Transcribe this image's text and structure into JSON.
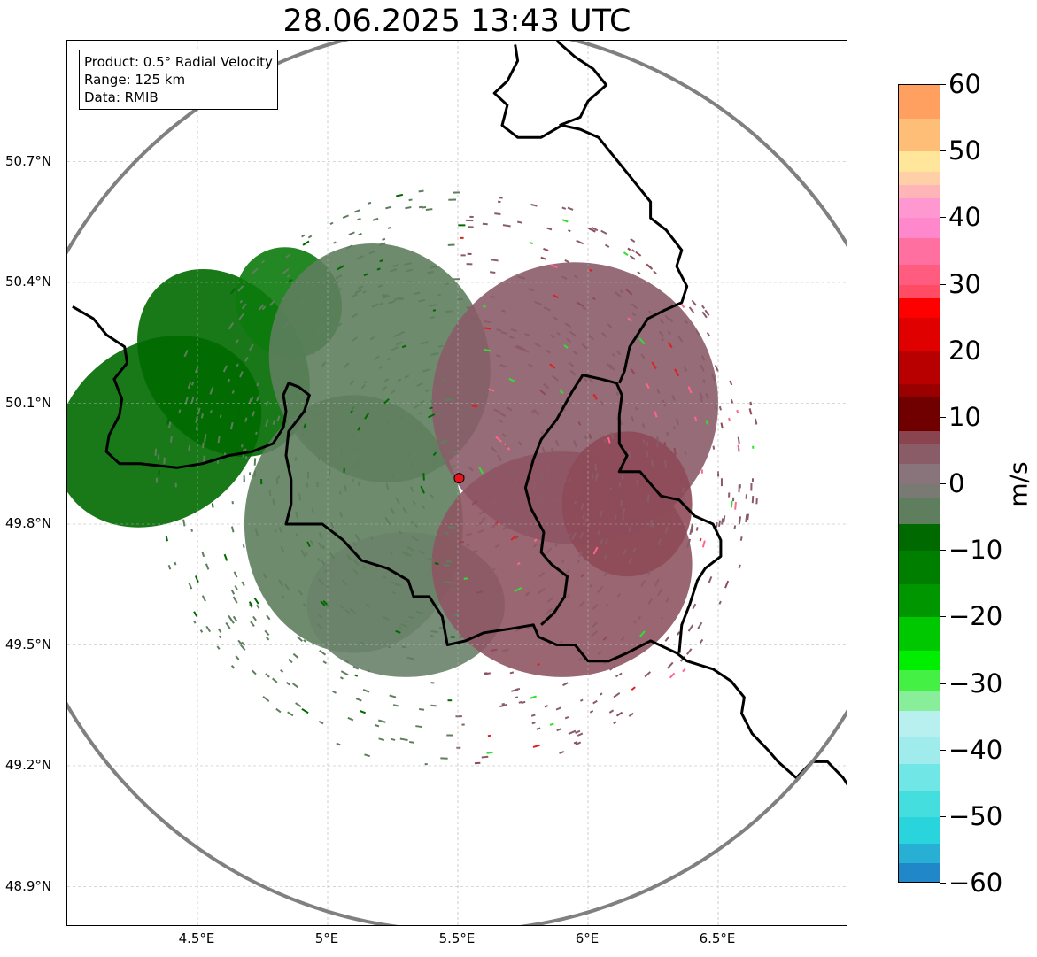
{
  "title": "28.06.2025 13:43 UTC",
  "info": {
    "product": "Product: 0.5° Radial Velocity",
    "range": "Range: 125 km",
    "data": "Data: RMIB"
  },
  "map": {
    "lon_range": [
      4.0,
      7.0
    ],
    "lat_range": [
      48.8,
      51.0
    ],
    "radar_site": {
      "lon": 5.505,
      "lat": 49.914
    },
    "range_ring_km": 125,
    "lat_ticks": [
      {
        "value": 50.7,
        "label": "50.7°N"
      },
      {
        "value": 50.4,
        "label": "50.4°N"
      },
      {
        "value": 50.1,
        "label": "50.1°N"
      },
      {
        "value": 49.8,
        "label": "49.8°N"
      },
      {
        "value": 49.5,
        "label": "49.5°N"
      },
      {
        "value": 49.2,
        "label": "49.2°N"
      },
      {
        "value": 48.9,
        "label": "48.9°N"
      }
    ],
    "lon_ticks": [
      {
        "value": 4.5,
        "label": "4.5°E"
      },
      {
        "value": 5.0,
        "label": "5°E"
      },
      {
        "value": 5.5,
        "label": "5.5°E"
      },
      {
        "value": 6.0,
        "label": "6°E"
      },
      {
        "value": 6.5,
        "label": "6.5°E"
      }
    ],
    "grid": true,
    "colors": {
      "border": "#000000",
      "range_ring": "#808080",
      "gridline": "#b0b0b0",
      "radar_marker": "#e8141b",
      "inbound_strong": "#006a00",
      "inbound_weak": "#5e7e5e",
      "outbound_weak": "#8a5c68",
      "outbound_mid": "#8e4a58"
    },
    "borders": [
      [
        [
          4.02,
          50.34
        ],
        [
          4.1,
          50.31
        ],
        [
          4.15,
          50.27
        ],
        [
          4.22,
          50.24
        ],
        [
          4.23,
          50.2
        ],
        [
          4.18,
          50.16
        ],
        [
          4.21,
          50.11
        ],
        [
          4.2,
          50.07
        ],
        [
          4.16,
          50.02
        ],
        [
          4.15,
          49.98
        ],
        [
          4.2,
          49.95
        ],
        [
          4.28,
          49.95
        ],
        [
          4.42,
          49.94
        ],
        [
          4.52,
          49.95
        ],
        [
          4.62,
          49.97
        ],
        [
          4.71,
          49.98
        ],
        [
          4.79,
          50.0
        ],
        [
          4.83,
          50.04
        ],
        [
          4.84,
          50.08
        ],
        [
          4.83,
          50.12
        ],
        [
          4.85,
          50.15
        ],
        [
          4.89,
          50.14
        ],
        [
          4.93,
          50.12
        ],
        [
          4.91,
          50.08
        ],
        [
          4.85,
          50.03
        ],
        [
          4.84,
          49.97
        ],
        [
          4.86,
          49.91
        ],
        [
          4.86,
          49.85
        ],
        [
          4.84,
          49.8
        ],
        [
          4.88,
          49.8
        ],
        [
          4.98,
          49.8
        ],
        [
          5.06,
          49.76
        ],
        [
          5.13,
          49.71
        ],
        [
          5.23,
          49.69
        ],
        [
          5.31,
          49.66
        ],
        [
          5.33,
          49.62
        ],
        [
          5.39,
          49.62
        ],
        [
          5.44,
          49.57
        ],
        [
          5.46,
          49.5
        ],
        [
          5.53,
          49.51
        ],
        [
          5.6,
          49.53
        ],
        [
          5.7,
          49.54
        ],
        [
          5.79,
          49.55
        ],
        [
          5.81,
          49.52
        ],
        [
          5.88,
          49.5
        ],
        [
          5.95,
          49.5
        ],
        [
          6.0,
          49.46
        ],
        [
          6.08,
          49.46
        ],
        [
          6.15,
          49.48
        ],
        [
          6.24,
          49.51
        ],
        [
          6.34,
          49.48
        ],
        [
          6.38,
          49.46
        ],
        [
          6.48,
          49.44
        ],
        [
          6.55,
          49.41
        ],
        [
          6.6,
          49.37
        ],
        [
          6.59,
          49.33
        ],
        [
          6.63,
          49.28
        ],
        [
          6.69,
          49.24
        ],
        [
          6.73,
          49.21
        ],
        [
          6.8,
          49.17
        ],
        [
          6.86,
          49.21
        ],
        [
          6.92,
          49.21
        ],
        [
          6.98,
          49.17
        ],
        [
          7.0,
          49.15
        ]
      ],
      [
        [
          5.82,
          49.55
        ],
        [
          5.87,
          49.58
        ],
        [
          5.91,
          49.62
        ],
        [
          5.92,
          49.67
        ],
        [
          5.86,
          49.7
        ],
        [
          5.82,
          49.73
        ],
        [
          5.83,
          49.78
        ],
        [
          5.78,
          49.84
        ],
        [
          5.76,
          49.89
        ],
        [
          5.79,
          49.96
        ],
        [
          5.82,
          50.01
        ],
        [
          5.88,
          50.06
        ],
        [
          5.94,
          50.13
        ],
        [
          5.98,
          50.17
        ],
        [
          6.05,
          50.16
        ],
        [
          6.11,
          50.15
        ],
        [
          6.13,
          50.12
        ],
        [
          6.12,
          50.07
        ],
        [
          6.12,
          50.0
        ],
        [
          6.15,
          49.97
        ],
        [
          6.12,
          49.93
        ],
        [
          6.2,
          49.93
        ],
        [
          6.28,
          49.87
        ],
        [
          6.35,
          49.86
        ],
        [
          6.41,
          49.82
        ],
        [
          6.48,
          49.8
        ],
        [
          6.51,
          49.76
        ],
        [
          6.51,
          49.72
        ],
        [
          6.45,
          49.69
        ],
        [
          6.42,
          49.66
        ],
        [
          6.39,
          49.6
        ],
        [
          6.36,
          49.55
        ],
        [
          6.35,
          49.48
        ]
      ],
      [
        [
          6.12,
          50.15
        ],
        [
          6.14,
          50.18
        ],
        [
          6.16,
          50.24
        ],
        [
          6.23,
          50.31
        ],
        [
          6.29,
          50.33
        ],
        [
          6.36,
          50.35
        ],
        [
          6.38,
          50.39
        ],
        [
          6.34,
          50.44
        ],
        [
          6.36,
          50.48
        ],
        [
          6.3,
          50.53
        ],
        [
          6.24,
          50.56
        ],
        [
          6.24,
          50.6
        ],
        [
          6.19,
          50.64
        ],
        [
          6.14,
          50.68
        ],
        [
          6.09,
          50.72
        ],
        [
          6.04,
          50.76
        ],
        [
          5.97,
          50.78
        ],
        [
          5.9,
          50.79
        ],
        [
          5.82,
          50.76
        ],
        [
          5.73,
          50.76
        ],
        [
          5.67,
          50.79
        ],
        [
          5.69,
          50.84
        ],
        [
          5.64,
          50.87
        ],
        [
          5.69,
          50.9
        ],
        [
          5.73,
          50.95
        ],
        [
          5.72,
          50.99
        ]
      ],
      [
        [
          5.88,
          51.0
        ],
        [
          5.95,
          50.96
        ],
        [
          6.02,
          50.93
        ],
        [
          6.07,
          50.89
        ],
        [
          6.0,
          50.85
        ],
        [
          5.97,
          50.81
        ],
        [
          5.89,
          50.79
        ]
      ]
    ],
    "echo_blobs": [
      {
        "lon": 4.35,
        "lat": 50.03,
        "rlon": 0.42,
        "rlat": 0.22,
        "rot": -35,
        "color": "#006a00"
      },
      {
        "lon": 4.6,
        "lat": 50.2,
        "rlon": 0.3,
        "rlat": 0.25,
        "rot": -35,
        "color": "#006a00"
      },
      {
        "lon": 4.85,
        "lat": 50.35,
        "rlon": 0.2,
        "rlat": 0.14,
        "rot": -30,
        "color": "#0b7a0b"
      },
      {
        "lon": 5.2,
        "lat": 50.2,
        "rlon": 0.42,
        "rlat": 0.3,
        "rot": -20,
        "color": "#5e7e5e"
      },
      {
        "lon": 5.1,
        "lat": 49.8,
        "rlon": 0.42,
        "rlat": 0.32,
        "rot": 0,
        "color": "#5e7e5e"
      },
      {
        "lon": 5.3,
        "lat": 49.6,
        "rlon": 0.38,
        "rlat": 0.18,
        "rot": 0,
        "color": "#6a826a"
      },
      {
        "lon": 5.95,
        "lat": 50.1,
        "rlon": 0.55,
        "rlat": 0.35,
        "rot": 0,
        "color": "#8a5c68"
      },
      {
        "lon": 5.9,
        "lat": 49.7,
        "rlon": 0.5,
        "rlat": 0.28,
        "rot": 0,
        "color": "#8e5563"
      },
      {
        "lon": 6.15,
        "lat": 49.85,
        "rlon": 0.25,
        "rlat": 0.18,
        "rot": 0,
        "color": "#8e4a58"
      }
    ],
    "noise_palette": [
      "#5e7e5e",
      "#8a5c68",
      "#006a00",
      "#e02020",
      "#33dd33",
      "#8e4a58",
      "#ff6688"
    ]
  },
  "colorbar": {
    "label": "m/s",
    "vmin": -60,
    "vmax": 60,
    "ticks": [
      "60",
      "50",
      "40",
      "30",
      "20",
      "10",
      "0",
      "−10",
      "−20",
      "−30",
      "−40",
      "−50",
      "−60"
    ],
    "tick_values": [
      60,
      50,
      40,
      30,
      20,
      10,
      0,
      -10,
      -20,
      -30,
      -40,
      -50,
      -60
    ],
    "stops": [
      {
        "from": 55,
        "to": 60,
        "color": "#ffa060"
      },
      {
        "from": 50,
        "to": 55,
        "color": "#ffbe78"
      },
      {
        "from": 47,
        "to": 50,
        "color": "#ffe69a"
      },
      {
        "from": 45,
        "to": 47,
        "color": "#ffd0a8"
      },
      {
        "from": 43,
        "to": 45,
        "color": "#ffb4b8"
      },
      {
        "from": 40,
        "to": 43,
        "color": "#ff98d0"
      },
      {
        "from": 37,
        "to": 40,
        "color": "#ff88cc"
      },
      {
        "from": 33,
        "to": 37,
        "color": "#ff70a0"
      },
      {
        "from": 30,
        "to": 33,
        "color": "#ff5c80"
      },
      {
        "from": 28,
        "to": 30,
        "color": "#ff4c64"
      },
      {
        "from": 25,
        "to": 28,
        "color": "#ff0000"
      },
      {
        "from": 20,
        "to": 25,
        "color": "#e00000"
      },
      {
        "from": 15,
        "to": 20,
        "color": "#b80000"
      },
      {
        "from": 13,
        "to": 15,
        "color": "#9a0000"
      },
      {
        "from": 8,
        "to": 13,
        "color": "#700000"
      },
      {
        "from": 6,
        "to": 8,
        "color": "#8a4450"
      },
      {
        "from": 3,
        "to": 6,
        "color": "#8a5c68"
      },
      {
        "from": 0,
        "to": 3,
        "color": "#88747a"
      },
      {
        "from": -2,
        "to": 0,
        "color": "#7a7a74"
      },
      {
        "from": -6,
        "to": -2,
        "color": "#5e7e5e"
      },
      {
        "from": -10,
        "to": -6,
        "color": "#006a00"
      },
      {
        "from": -15,
        "to": -10,
        "color": "#007e00"
      },
      {
        "from": -20,
        "to": -15,
        "color": "#009600"
      },
      {
        "from": -25,
        "to": -20,
        "color": "#00c800"
      },
      {
        "from": -28,
        "to": -25,
        "color": "#00ee00"
      },
      {
        "from": -31,
        "to": -28,
        "color": "#44f044"
      },
      {
        "from": -34,
        "to": -31,
        "color": "#88ee99"
      },
      {
        "from": -38,
        "to": -34,
        "color": "#b8f0f0"
      },
      {
        "from": -42,
        "to": -38,
        "color": "#a0ecec"
      },
      {
        "from": -46,
        "to": -42,
        "color": "#70e6e6"
      },
      {
        "from": -50,
        "to": -46,
        "color": "#44dede"
      },
      {
        "from": -54,
        "to": -50,
        "color": "#2ad4dc"
      },
      {
        "from": -57,
        "to": -54,
        "color": "#28b0d4"
      },
      {
        "from": -60,
        "to": -57,
        "color": "#2088c8"
      }
    ]
  }
}
